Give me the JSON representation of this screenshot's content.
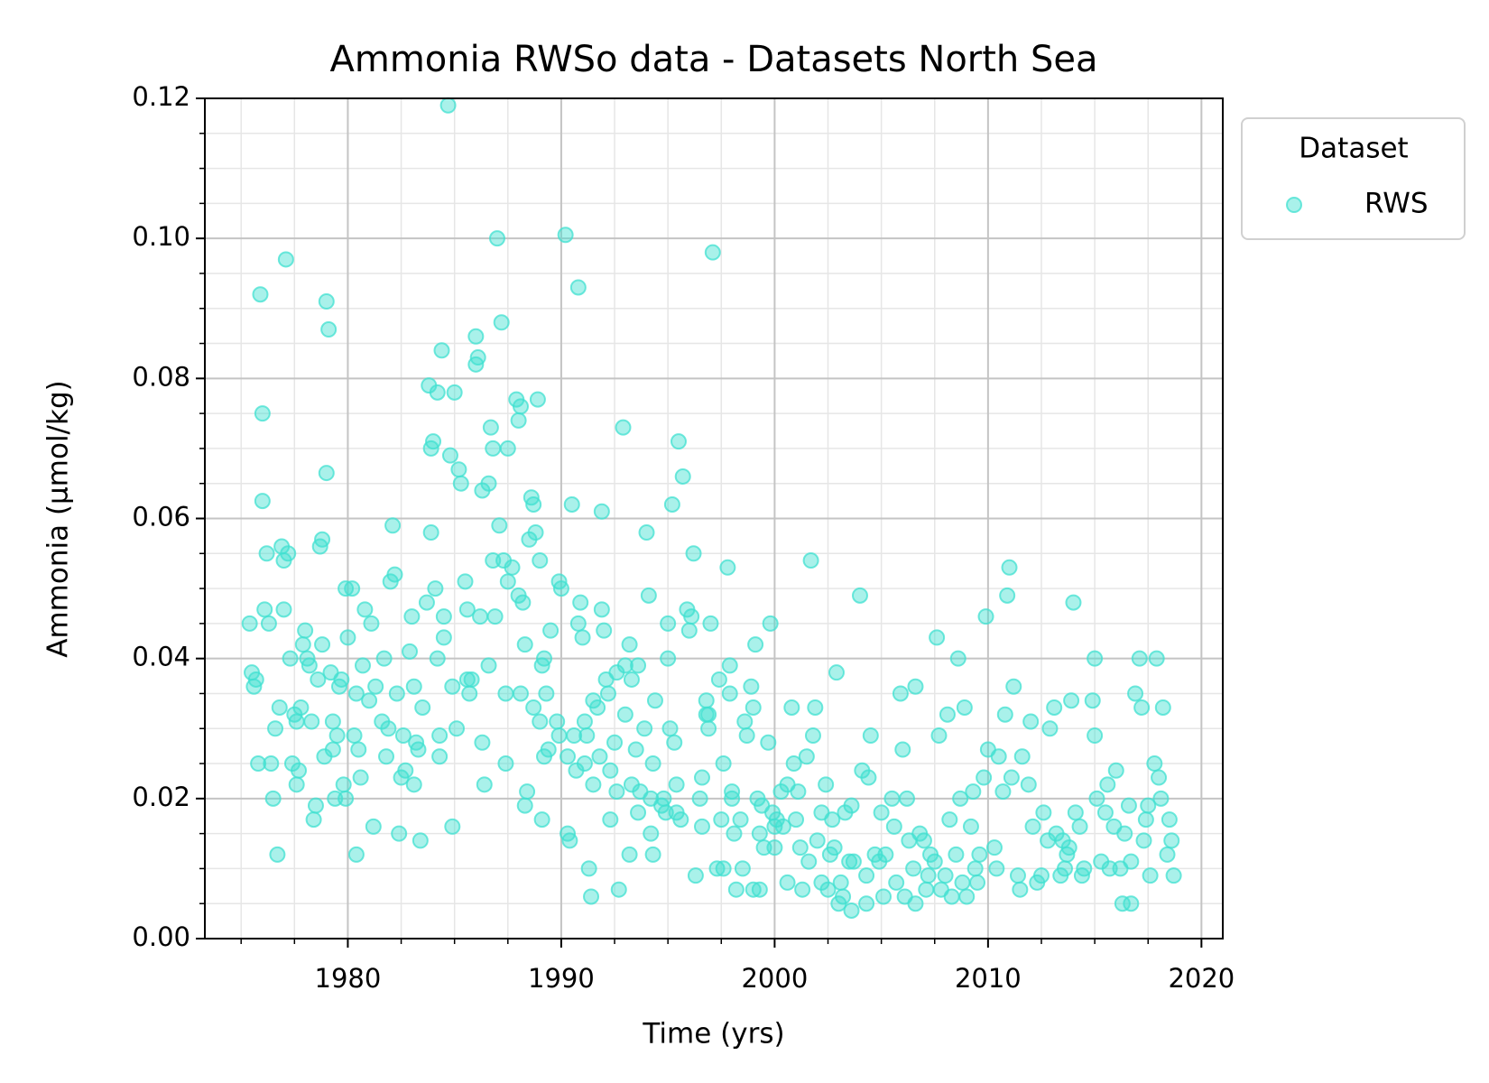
{
  "chart_data": {
    "type": "scatter",
    "title": "Ammonia RWSo data - Datasets North Sea",
    "x_label": "Time (yrs)",
    "y_label": "Ammonia (µmol/kg)",
    "legend_title": "Dataset",
    "legend": "outside upper right",
    "grid": true,
    "xlim": [
      1973.3,
      2021
    ],
    "ylim": [
      0,
      0.12
    ],
    "xticks": [
      1980,
      1990,
      2000,
      2010,
      2020
    ],
    "yticks": [
      {
        "value": 0,
        "label": "0.00"
      },
      {
        "value": 0.02,
        "label": "0.02"
      },
      {
        "value": 0.04,
        "label": "0.04"
      },
      {
        "value": 0.06,
        "label": "0.06"
      },
      {
        "value": 0.08,
        "label": "0.08"
      },
      {
        "value": 0.1,
        "label": "0.10"
      },
      {
        "value": 0.12,
        "label": "0.12"
      }
    ],
    "xminorticks": [
      1975,
      1977.5,
      1982.5,
      1985,
      1987.5,
      1992.5,
      1995,
      1997.5,
      2002.5,
      2005,
      2007.5,
      2012.5,
      2015,
      2017.5
    ],
    "yminorticks": [
      0.005,
      0.01,
      0.015,
      0.025,
      0.03,
      0.035,
      0.045,
      0.05,
      0.055,
      0.065,
      0.07,
      0.075,
      0.085,
      0.09,
      0.095,
      0.105,
      0.11,
      0.115
    ],
    "series": [
      {
        "name": "RWS",
        "color": "#40e0d0",
        "x": [
          1975.4,
          1975.6,
          1975.5,
          1975.7,
          1975.8,
          1975.9,
          1976.0,
          1976.0,
          1976.2,
          1976.1,
          1976.3,
          1976.4,
          1976.6,
          1976.5,
          1976.7,
          1976.8,
          1977.1,
          1976.9,
          1977.0,
          1977.0,
          1977.2,
          1977.3,
          1977.4,
          1977.5,
          1977.6,
          1977.7,
          1977.8,
          1977.6,
          1978.0,
          1977.9,
          1978.1,
          1978.2,
          1978.4,
          1978.5,
          1978.3,
          1978.6,
          1978.8,
          1978.7,
          1978.9,
          1978.8,
          1979.0,
          1979.1,
          1979.0,
          1979.2,
          1979.3,
          1979.5,
          1979.4,
          1979.3,
          1979.9,
          1979.7,
          1979.6,
          1979.8,
          1980.0,
          1980.2,
          1980.4,
          1980.3,
          1979.9,
          1980.4,
          1980.8,
          1980.7,
          1980.6,
          1980.5,
          1981.1,
          1981.3,
          1981.2,
          1981.0,
          1981.6,
          1981.8,
          1981.7,
          1981.9,
          1982.1,
          1982.0,
          1982.2,
          1982.3,
          1982.4,
          1982.7,
          1982.6,
          1982.5,
          1983.0,
          1982.9,
          1983.1,
          1983.2,
          1983.1,
          1983.4,
          1983.5,
          1983.3,
          1983.7,
          1983.8,
          1983.9,
          1984.0,
          1983.9,
          1984.2,
          1984.1,
          1984.4,
          1984.2,
          1984.3,
          1984.3,
          1984.5,
          1984.7,
          1984.8,
          1984.5,
          1984.9,
          1984.9,
          1985.0,
          1985.2,
          1985.3,
          1985.6,
          1985.1,
          1985.5,
          1985.6,
          1985.7,
          1985.8,
          1986.0,
          1986.1,
          1986.0,
          1986.3,
          1986.2,
          1986.3,
          1986.4,
          1986.6,
          1986.6,
          1986.7,
          1986.8,
          1986.8,
          1986.9,
          1987.0,
          1987.1,
          1987.2,
          1987.3,
          1987.4,
          1987.4,
          1987.5,
          1987.5,
          1987.7,
          1987.9,
          1988.0,
          1988.1,
          1988.2,
          1988.1,
          1988.3,
          1988.3,
          1988.4,
          1988.0,
          1988.5,
          1988.6,
          1988.7,
          1988.7,
          1988.9,
          1988.8,
          1989.0,
          1989.0,
          1989.2,
          1989.1,
          1989.2,
          1989.1,
          1989.3,
          1989.5,
          1989.4,
          1989.9,
          1990.0,
          1989.8,
          1989.9,
          1990.2,
          1990.3,
          1990.3,
          1990.4,
          1990.5,
          1990.6,
          1990.7,
          1990.8,
          1990.9,
          1990.8,
          1991.0,
          1991.1,
          1991.2,
          1991.1,
          1991.3,
          1991.5,
          1991.5,
          1991.4,
          1991.7,
          1991.9,
          1991.9,
          1992.0,
          1991.8,
          1992.1,
          1992.2,
          1992.3,
          1992.3,
          1992.6,
          1992.5,
          1992.6,
          1992.7,
          1992.9,
          1993.0,
          1993.0,
          1993.2,
          1993.3,
          1993.3,
          1993.2,
          1993.6,
          1993.5,
          1993.7,
          1993.6,
          1994.0,
          1994.1,
          1993.9,
          1994.2,
          1994.4,
          1994.3,
          1994.2,
          1994.3,
          1994.8,
          1994.7,
          1994.9,
          1995.2,
          1995.0,
          1995.0,
          1995.1,
          1995.3,
          1995.5,
          1995.4,
          1995.6,
          1995.4,
          1995.7,
          1995.9,
          1996.0,
          1996.1,
          1996.2,
          1996.3,
          1996.5,
          1996.6,
          1996.6,
          1996.8,
          1996.9,
          1996.8,
          1997.1,
          1997.0,
          1996.9,
          1997.3,
          1997.4,
          1997.6,
          1997.5,
          1997.6,
          1997.8,
          1997.9,
          1997.9,
          1998.0,
          1998.0,
          1998.1,
          1998.2,
          1998.4,
          1998.6,
          1998.7,
          1998.5,
          1999.0,
          1998.9,
          1999.0,
          1999.1,
          1999.2,
          1999.3,
          1999.3,
          1999.5,
          1999.4,
          1999.8,
          1999.7,
          1999.9,
          2000.0,
          2000.3,
          2000.1,
          2000.0,
          2000.4,
          2000.8,
          2000.9,
          2000.6,
          2000.6,
          2001.1,
          2001.0,
          2001.3,
          2001.2,
          2001.7,
          2001.5,
          2001.6,
          2001.9,
          2001.8,
          2002.0,
          2002.2,
          2002.4,
          2002.2,
          2002.6,
          2002.5,
          2002.9,
          2002.8,
          2002.7,
          2003.0,
          2003.3,
          2003.1,
          2003.2,
          2003.5,
          2003.6,
          2003.7,
          2003.6,
          2004.0,
          2004.1,
          2004.3,
          2004.5,
          2004.4,
          2004.7,
          2004.3,
          2005.0,
          2005.2,
          2005.1,
          2004.9,
          2005.5,
          2005.6,
          2005.7,
          2005.9,
          2006.0,
          2006.2,
          2006.3,
          2006.1,
          2006.6,
          2006.8,
          2006.5,
          2006.6,
          2007.0,
          2007.2,
          2007.1,
          2007.3,
          2007.6,
          2007.7,
          2007.5,
          2007.8,
          2008.1,
          2008.2,
          2008.0,
          2008.3,
          2008.6,
          2008.7,
          2008.5,
          2008.8,
          2008.9,
          2009.2,
          2009.0,
          2009.4,
          2009.3,
          2009.6,
          2009.5,
          2009.9,
          2010.0,
          2009.8,
          2010.3,
          2010.5,
          2010.7,
          2010.4,
          2011.0,
          2010.9,
          2011.2,
          2010.8,
          2011.1,
          2011.6,
          2011.4,
          2011.5,
          2012.0,
          2011.9,
          2012.1,
          2012.3,
          2012.6,
          2012.8,
          2012.5,
          2013.1,
          2012.9,
          2013.2,
          2013.4,
          2013.5,
          2013.7,
          2013.6,
          2014.0,
          2013.9,
          2014.1,
          2013.8,
          2014.3,
          2014.5,
          2014.4,
          2015.0,
          2014.9,
          2015.0,
          2015.1,
          2015.3,
          2015.6,
          2015.5,
          2015.7,
          2016.0,
          2015.9,
          2016.2,
          2016.3,
          2016.6,
          2016.4,
          2016.7,
          2016.7,
          2017.1,
          2016.9,
          2017.2,
          2017.3,
          2017.4,
          2017.5,
          2017.6,
          2017.9,
          2018.2,
          2017.8,
          2018.0,
          2018.1,
          2018.5,
          2018.6,
          2018.4,
          2018.7
        ],
        "values": [
          0.045,
          0.036,
          0.038,
          0.037,
          0.025,
          0.092,
          0.075,
          0.0625,
          0.055,
          0.047,
          0.045,
          0.025,
          0.03,
          0.02,
          0.012,
          0.033,
          0.097,
          0.056,
          0.054,
          0.047,
          0.055,
          0.04,
          0.025,
          0.032,
          0.022,
          0.024,
          0.033,
          0.031,
          0.044,
          0.042,
          0.04,
          0.039,
          0.017,
          0.019,
          0.031,
          0.037,
          0.057,
          0.056,
          0.026,
          0.042,
          0.091,
          0.087,
          0.0665,
          0.038,
          0.031,
          0.029,
          0.02,
          0.027,
          0.05,
          0.037,
          0.036,
          0.022,
          0.043,
          0.05,
          0.035,
          0.029,
          0.02,
          0.012,
          0.047,
          0.039,
          0.023,
          0.027,
          0.045,
          0.036,
          0.016,
          0.034,
          0.031,
          0.026,
          0.04,
          0.03,
          0.059,
          0.051,
          0.052,
          0.035,
          0.015,
          0.024,
          0.029,
          0.023,
          0.046,
          0.041,
          0.036,
          0.028,
          0.022,
          0.014,
          0.033,
          0.027,
          0.048,
          0.079,
          0.058,
          0.071,
          0.07,
          0.078,
          0.05,
          0.084,
          0.04,
          0.029,
          0.026,
          0.043,
          0.119,
          0.069,
          0.046,
          0.036,
          0.016,
          0.078,
          0.067,
          0.065,
          0.037,
          0.03,
          0.051,
          0.047,
          0.035,
          0.037,
          0.086,
          0.083,
          0.082,
          0.064,
          0.046,
          0.028,
          0.022,
          0.039,
          0.065,
          0.073,
          0.07,
          0.054,
          0.046,
          0.1,
          0.059,
          0.088,
          0.054,
          0.035,
          0.025,
          0.07,
          0.051,
          0.053,
          0.077,
          0.074,
          0.076,
          0.048,
          0.035,
          0.042,
          0.019,
          0.021,
          0.049,
          0.057,
          0.063,
          0.062,
          0.033,
          0.077,
          0.058,
          0.054,
          0.031,
          0.04,
          0.039,
          0.026,
          0.017,
          0.035,
          0.044,
          0.027,
          0.051,
          0.05,
          0.031,
          0.029,
          0.1005,
          0.026,
          0.015,
          0.014,
          0.062,
          0.029,
          0.024,
          0.093,
          0.048,
          0.045,
          0.043,
          0.031,
          0.029,
          0.025,
          0.01,
          0.034,
          0.022,
          0.006,
          0.033,
          0.061,
          0.047,
          0.044,
          0.026,
          0.037,
          0.035,
          0.024,
          0.017,
          0.038,
          0.028,
          0.021,
          0.007,
          0.073,
          0.032,
          0.039,
          0.042,
          0.037,
          0.022,
          0.012,
          0.039,
          0.027,
          0.021,
          0.018,
          0.058,
          0.049,
          0.03,
          0.02,
          0.034,
          0.025,
          0.015,
          0.012,
          0.02,
          0.019,
          0.018,
          0.062,
          0.045,
          0.04,
          0.03,
          0.028,
          0.071,
          0.022,
          0.017,
          0.018,
          0.066,
          0.047,
          0.044,
          0.046,
          0.055,
          0.009,
          0.02,
          0.016,
          0.023,
          0.032,
          0.03,
          0.034,
          0.098,
          0.045,
          0.032,
          0.01,
          0.037,
          0.025,
          0.017,
          0.01,
          0.053,
          0.039,
          0.035,
          0.021,
          0.02,
          0.015,
          0.007,
          0.017,
          0.031,
          0.029,
          0.01,
          0.007,
          0.036,
          0.033,
          0.042,
          0.02,
          0.015,
          0.007,
          0.013,
          0.019,
          0.045,
          0.028,
          0.018,
          0.016,
          0.021,
          0.017,
          0.013,
          0.016,
          0.033,
          0.025,
          0.022,
          0.008,
          0.021,
          0.017,
          0.007,
          0.013,
          0.054,
          0.026,
          0.011,
          0.033,
          0.029,
          0.014,
          0.008,
          0.022,
          0.018,
          0.012,
          0.007,
          0.038,
          0.013,
          0.017,
          0.005,
          0.018,
          0.008,
          0.006,
          0.011,
          0.019,
          0.011,
          0.004,
          0.049,
          0.024,
          0.009,
          0.029,
          0.023,
          0.012,
          0.005,
          0.018,
          0.012,
          0.006,
          0.011,
          0.02,
          0.016,
          0.008,
          0.035,
          0.027,
          0.02,
          0.014,
          0.006,
          0.036,
          0.015,
          0.01,
          0.005,
          0.014,
          0.009,
          0.007,
          0.012,
          0.043,
          0.029,
          0.011,
          0.007,
          0.032,
          0.017,
          0.009,
          0.006,
          0.04,
          0.02,
          0.012,
          0.008,
          0.033,
          0.016,
          0.006,
          0.01,
          0.021,
          0.012,
          0.008,
          0.046,
          0.027,
          0.023,
          0.013,
          0.026,
          0.021,
          0.01,
          0.053,
          0.049,
          0.036,
          0.032,
          0.023,
          0.026,
          0.009,
          0.007,
          0.031,
          0.022,
          0.016,
          0.008,
          0.018,
          0.014,
          0.009,
          0.033,
          0.03,
          0.015,
          0.009,
          0.014,
          0.012,
          0.01,
          0.048,
          0.034,
          0.018,
          0.013,
          0.016,
          0.01,
          0.009,
          0.04,
          0.034,
          0.029,
          0.02,
          0.011,
          0.022,
          0.018,
          0.01,
          0.024,
          0.016,
          0.01,
          0.005,
          0.019,
          0.015,
          0.011,
          0.005,
          0.04,
          0.035,
          0.033,
          0.014,
          0.017,
          0.019,
          0.009,
          0.04,
          0.033,
          0.025,
          0.023,
          0.02,
          0.017,
          0.014,
          0.012,
          0.009
        ]
      }
    ]
  }
}
